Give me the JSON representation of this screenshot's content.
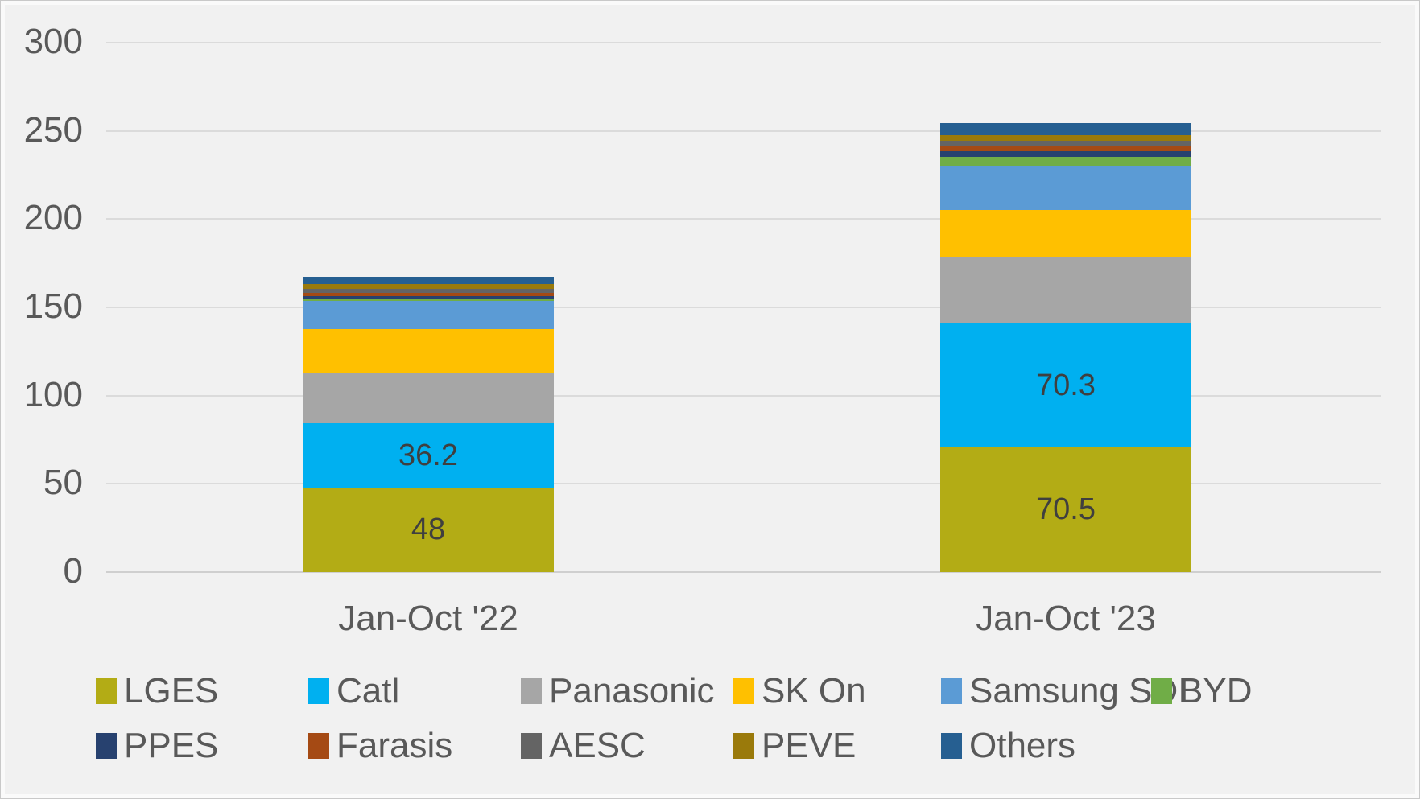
{
  "chart_data": {
    "type": "bar",
    "subtype": "stacked-column",
    "title": "",
    "xlabel": "",
    "ylabel": "",
    "categories": [
      "Jan-Oct '22",
      "Jan-Oct '23"
    ],
    "series": [
      {
        "name": "LGES",
        "color": "#B3AC15",
        "values": [
          48,
          70.5
        ],
        "labels": [
          "48",
          "70.5"
        ]
      },
      {
        "name": "Catl",
        "color": "#00B0F0",
        "values": [
          36.2,
          70.3
        ],
        "labels": [
          "36.2",
          "70.3"
        ]
      },
      {
        "name": "Panasonic",
        "color": "#A6A6A6",
        "values": [
          29,
          37.8
        ],
        "labels": null
      },
      {
        "name": "SK On",
        "color": "#FFC000",
        "values": [
          24.3,
          26.6
        ],
        "labels": null
      },
      {
        "name": "Samsung SDI",
        "color": "#5B9BD5",
        "values": [
          16.3,
          25.2
        ],
        "labels": null
      },
      {
        "name": "BYD",
        "color": "#70AD47",
        "values": [
          1.1,
          4.7
        ],
        "labels": null
      },
      {
        "name": "PPES",
        "color": "#27416F",
        "values": [
          1.4,
          3.3
        ],
        "labels": null
      },
      {
        "name": "Farasis",
        "color": "#A54A14",
        "values": [
          1.8,
          3.3
        ],
        "labels": null
      },
      {
        "name": "AESC",
        "color": "#646464",
        "values": [
          2.6,
          2.7
        ],
        "labels": null
      },
      {
        "name": "PEVE",
        "color": "#9A7A0B",
        "values": [
          2.3,
          3.1
        ],
        "labels": null
      },
      {
        "name": "Others",
        "color": "#265F91",
        "values": [
          4.2,
          6.8
        ],
        "labels": null
      }
    ],
    "y_axis": {
      "min": 0,
      "max": 300,
      "step": 50,
      "ticks": [
        "0",
        "50",
        "100",
        "150",
        "200",
        "250",
        "300"
      ]
    },
    "ylim": [
      0,
      300
    ],
    "grid": true,
    "legend": {
      "position": "bottom",
      "rows": [
        [
          "LGES",
          "Catl",
          "Panasonic",
          "SK On",
          "Samsung SDI",
          "BYD"
        ],
        [
          "PPES",
          "Farasis",
          "AESC",
          "PEVE",
          "Others"
        ]
      ]
    }
  },
  "colors": {
    "background": "#F1F1F1",
    "gridline": "#DBDBDB",
    "gridline_zero": "#CFCFCF",
    "axis_text": "#595959",
    "data_label_text": "#3F3F3F"
  }
}
